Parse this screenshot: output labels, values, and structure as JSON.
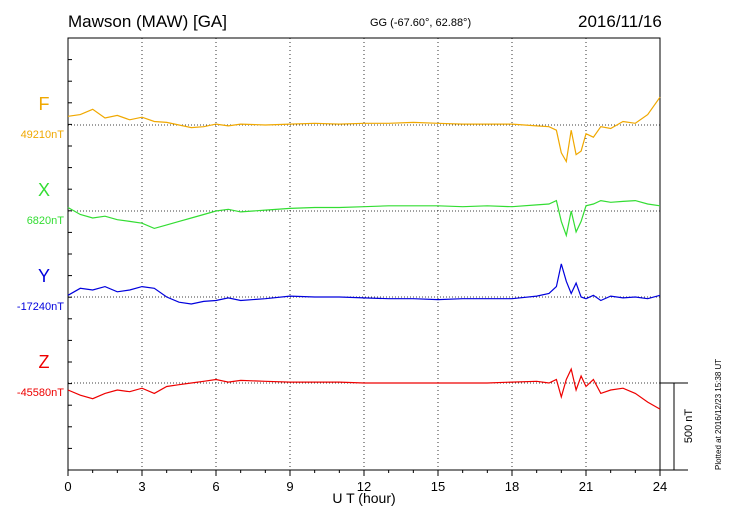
{
  "header": {
    "title": "Mawson (MAW)  [GA]",
    "coords": "GG (-67.60°,  62.88°)",
    "date": "2016/11/16"
  },
  "plotted_note": "Plotted at 2016/12/23 15:38 UT",
  "chart_data": {
    "type": "line",
    "xlabel": "U T (hour)",
    "xlim": [
      0,
      24
    ],
    "xticks": [
      "0",
      "3",
      "6",
      "9",
      "12",
      "15",
      "18",
      "21",
      "24"
    ],
    "scale_label": "500 nT",
    "grid": true,
    "series": [
      {
        "name": "F",
        "baseline_label": "49210nT",
        "baseline": 49210,
        "color": "#f0a800",
        "x": [
          0,
          0.5,
          1,
          1.5,
          2,
          2.5,
          3,
          3.5,
          4,
          4.5,
          5,
          5.5,
          6,
          6.5,
          7,
          8,
          9,
          10,
          11,
          12,
          13,
          14,
          15,
          16,
          17,
          18,
          19,
          19.5,
          19.8,
          20,
          20.2,
          20.4,
          20.6,
          20.8,
          21,
          21.3,
          21.6,
          22,
          22.5,
          23,
          23.5,
          24
        ],
        "y": [
          49260,
          49270,
          49300,
          49250,
          49265,
          49240,
          49255,
          49230,
          49225,
          49210,
          49195,
          49200,
          49215,
          49205,
          49215,
          49210,
          49215,
          49220,
          49215,
          49220,
          49220,
          49225,
          49220,
          49215,
          49215,
          49215,
          49205,
          49200,
          49180,
          49050,
          49000,
          49180,
          49040,
          49060,
          49160,
          49140,
          49200,
          49190,
          49230,
          49220,
          49270,
          49370
        ]
      },
      {
        "name": "X",
        "baseline_label": "6820nT",
        "baseline": 6820,
        "color": "#33dd33",
        "x": [
          0,
          0.5,
          1,
          1.5,
          2,
          2.5,
          3,
          3.5,
          4,
          4.5,
          5,
          5.5,
          6,
          6.5,
          7,
          8,
          9,
          10,
          11,
          12,
          13,
          14,
          15,
          16,
          17,
          18,
          19,
          19.5,
          19.8,
          20,
          20.2,
          20.4,
          20.6,
          20.8,
          21,
          21.3,
          21.6,
          22,
          22.5,
          23,
          23.5,
          24
        ],
        "y": [
          6840,
          6800,
          6780,
          6790,
          6770,
          6760,
          6750,
          6720,
          6740,
          6760,
          6780,
          6800,
          6820,
          6830,
          6815,
          6825,
          6835,
          6840,
          6840,
          6845,
          6850,
          6850,
          6850,
          6845,
          6850,
          6845,
          6855,
          6860,
          6880,
          6760,
          6680,
          6820,
          6700,
          6760,
          6850,
          6860,
          6880,
          6870,
          6875,
          6880,
          6860,
          6850
        ]
      },
      {
        "name": "Y",
        "baseline_label": "-17240nT",
        "baseline": -17240,
        "color": "#0000dd",
        "x": [
          0,
          0.5,
          1,
          1.5,
          2,
          2.5,
          3,
          3.5,
          4,
          4.5,
          5,
          5.5,
          6,
          6.5,
          7,
          8,
          9,
          10,
          11,
          12,
          13,
          14,
          15,
          16,
          17,
          18,
          19,
          19.5,
          19.8,
          20,
          20.2,
          20.4,
          20.6,
          20.8,
          21,
          21.3,
          21.6,
          22,
          22.5,
          23,
          23.5,
          24
        ],
        "y": [
          -17230,
          -17190,
          -17200,
          -17180,
          -17210,
          -17200,
          -17180,
          -17190,
          -17240,
          -17270,
          -17280,
          -17265,
          -17260,
          -17245,
          -17260,
          -17250,
          -17235,
          -17240,
          -17240,
          -17245,
          -17250,
          -17250,
          -17255,
          -17250,
          -17250,
          -17250,
          -17235,
          -17220,
          -17180,
          -17050,
          -17150,
          -17220,
          -17160,
          -17240,
          -17250,
          -17230,
          -17260,
          -17235,
          -17245,
          -17240,
          -17250,
          -17230
        ]
      },
      {
        "name": "Z",
        "baseline_label": "-45580nT",
        "baseline": -45580,
        "color": "#ee0000",
        "x": [
          0,
          0.5,
          1,
          1.5,
          2,
          2.5,
          3,
          3.5,
          4,
          4.5,
          5,
          5.5,
          6,
          6.5,
          7,
          8,
          9,
          10,
          11,
          12,
          13,
          14,
          15,
          16,
          17,
          18,
          19,
          19.5,
          19.8,
          20,
          20.2,
          20.4,
          20.6,
          20.8,
          21,
          21.3,
          21.6,
          22,
          22.5,
          23,
          23.5,
          24
        ],
        "y": [
          -45620,
          -45650,
          -45670,
          -45640,
          -45620,
          -45630,
          -45610,
          -45640,
          -45600,
          -45590,
          -45580,
          -45570,
          -45560,
          -45575,
          -45565,
          -45570,
          -45575,
          -45575,
          -45575,
          -45580,
          -45580,
          -45580,
          -45580,
          -45580,
          -45580,
          -45575,
          -45570,
          -45580,
          -45560,
          -45660,
          -45560,
          -45500,
          -45620,
          -45540,
          -45600,
          -45560,
          -45640,
          -45620,
          -45610,
          -45640,
          -45690,
          -45730
        ]
      }
    ]
  }
}
